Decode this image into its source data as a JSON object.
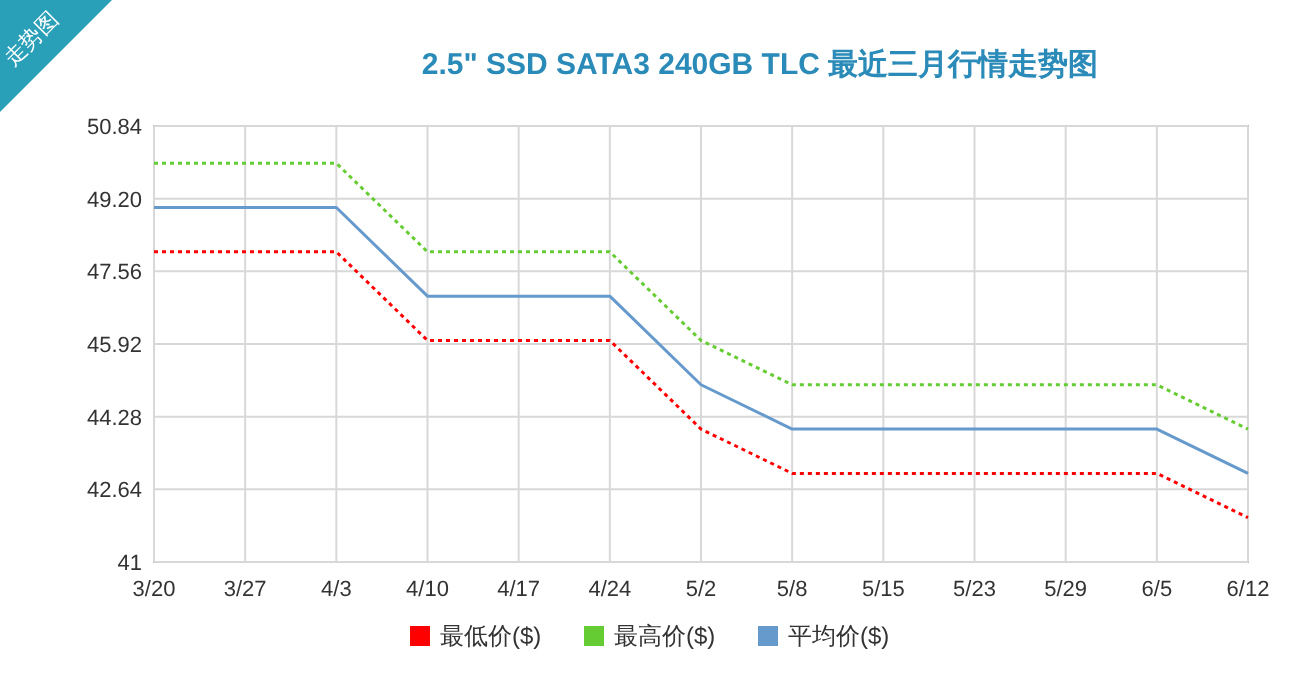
{
  "chart_data": {
    "type": "line",
    "title": "2.5\" SSD SATA3 240GB TLC 最近三月行情走势图",
    "annotations": [
      "走势图"
    ],
    "categories": [
      "3/20",
      "3/27",
      "4/3",
      "4/10",
      "4/17",
      "4/24",
      "5/2",
      "5/8",
      "5/15",
      "5/23",
      "5/29",
      "6/5",
      "6/12"
    ],
    "series": [
      {
        "name": "最低价($)",
        "color": "#ff0000",
        "line_style": "dotted",
        "values": [
          48,
          48,
          48,
          46,
          46,
          46,
          44,
          43,
          43,
          43,
          43,
          43,
          42
        ]
      },
      {
        "name": "最高价($)",
        "color": "#66cc33",
        "line_style": "dotted",
        "values": [
          50,
          50,
          50,
          48,
          48,
          48,
          46,
          45,
          45,
          45,
          45,
          45,
          44
        ]
      },
      {
        "name": "平均价($)",
        "color": "#6699cc",
        "line_style": "solid",
        "values": [
          49,
          49,
          49,
          47,
          47,
          47,
          45,
          44,
          44,
          44,
          44,
          44,
          43
        ]
      }
    ],
    "ylim": [
      41,
      50.84
    ],
    "yticks": [
      41,
      42.64,
      44.28,
      45.92,
      47.56,
      {
        "value": 49.2,
        "label": "49.20"
      },
      50.84
    ],
    "grid": true,
    "legend": "bottom"
  }
}
